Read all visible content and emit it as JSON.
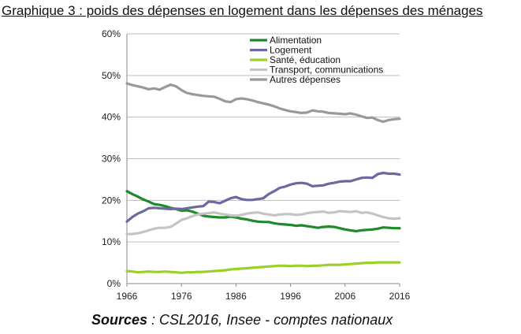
{
  "title": "Graphique 3 : poids des dépenses en logement dans les dépenses des ménages",
  "sources": {
    "label": "Sources",
    "text": " : CSL2016, Insee - comptes nationaux"
  },
  "chart_data": {
    "type": "line",
    "title": "Graphique 3 : poids des dépenses en logement dans les dépenses des ménages",
    "xlabel": "",
    "ylabel": "",
    "xlim": [
      1966,
      2016
    ],
    "ylim": [
      0,
      60
    ],
    "x_ticks": [
      "1966",
      "1976",
      "1986",
      "1996",
      "2006",
      "2016"
    ],
    "y_ticks": [
      "0%",
      "10%",
      "20%",
      "30%",
      "40%",
      "50%",
      "60%"
    ],
    "grid": "horizontal",
    "legend": "top-right",
    "x": [
      1966,
      1967,
      1968,
      1969,
      1970,
      1971,
      1972,
      1973,
      1974,
      1975,
      1976,
      1977,
      1978,
      1979,
      1980,
      1981,
      1982,
      1983,
      1984,
      1985,
      1986,
      1987,
      1988,
      1989,
      1990,
      1991,
      1992,
      1993,
      1994,
      1995,
      1996,
      1997,
      1998,
      1999,
      2000,
      2001,
      2002,
      2003,
      2004,
      2005,
      2006,
      2007,
      2008,
      2009,
      2010,
      2011,
      2012,
      2013,
      2014,
      2015,
      2016
    ],
    "series": [
      {
        "name": "Alimentation",
        "color": "#1e8a2a",
        "values": [
          22.2,
          21.5,
          20.9,
          20.2,
          19.7,
          19.1,
          18.9,
          18.6,
          18.2,
          17.9,
          17.5,
          17.6,
          17.3,
          16.8,
          16.3,
          16.1,
          16.0,
          15.9,
          15.9,
          16.1,
          15.9,
          15.6,
          15.4,
          15.1,
          14.9,
          14.8,
          14.8,
          14.5,
          14.3,
          14.2,
          14.1,
          13.9,
          14.0,
          13.8,
          13.6,
          13.4,
          13.6,
          13.7,
          13.6,
          13.3,
          13.0,
          12.8,
          12.6,
          12.8,
          12.9,
          13.0,
          13.2,
          13.5,
          13.4,
          13.3,
          13.3
        ]
      },
      {
        "name": "Logement",
        "color": "#6b6aa0",
        "values": [
          14.9,
          16.0,
          16.8,
          17.4,
          18.1,
          18.2,
          18.1,
          18.0,
          17.9,
          18.0,
          17.9,
          18.1,
          18.3,
          18.5,
          18.6,
          19.7,
          19.6,
          19.3,
          19.9,
          20.5,
          20.8,
          20.3,
          20.1,
          20.1,
          20.3,
          20.5,
          21.5,
          22.2,
          23.0,
          23.3,
          23.8,
          24.1,
          24.2,
          24.0,
          23.4,
          23.5,
          23.6,
          24.0,
          24.2,
          24.5,
          24.6,
          24.6,
          25.0,
          25.4,
          25.5,
          25.4,
          26.3,
          26.6,
          26.4,
          26.4,
          26.2
        ]
      },
      {
        "name": "Santé, éducation",
        "color": "#9bd02b",
        "values": [
          3.0,
          2.9,
          2.7,
          2.8,
          2.9,
          2.8,
          2.8,
          2.9,
          2.8,
          2.7,
          2.6,
          2.7,
          2.7,
          2.8,
          2.8,
          2.9,
          3.0,
          3.1,
          3.2,
          3.4,
          3.5,
          3.6,
          3.7,
          3.8,
          3.9,
          4.0,
          4.1,
          4.2,
          4.3,
          4.3,
          4.2,
          4.3,
          4.3,
          4.2,
          4.3,
          4.3,
          4.4,
          4.5,
          4.5,
          4.5,
          4.6,
          4.7,
          4.8,
          4.9,
          5.0,
          5.0,
          5.1,
          5.1,
          5.1,
          5.1,
          5.1
        ]
      },
      {
        "name": "Transport, communications",
        "color": "#c4c4c4",
        "values": [
          11.9,
          11.9,
          12.1,
          12.4,
          12.8,
          13.2,
          13.4,
          13.4,
          13.6,
          14.4,
          15.3,
          15.7,
          16.2,
          16.6,
          16.8,
          16.9,
          17.1,
          16.8,
          16.6,
          16.4,
          16.3,
          16.5,
          16.8,
          17.0,
          17.1,
          16.8,
          16.6,
          16.4,
          16.6,
          16.7,
          16.7,
          16.5,
          16.6,
          16.9,
          17.1,
          17.2,
          17.3,
          17.0,
          17.1,
          17.4,
          17.3,
          17.2,
          17.4,
          17.0,
          17.1,
          16.8,
          16.4,
          16.0,
          15.7,
          15.6,
          15.7
        ]
      },
      {
        "name": "Autres dépenses",
        "color": "#999999",
        "values": [
          48.1,
          47.7,
          47.4,
          47.1,
          46.7,
          46.9,
          46.6,
          47.2,
          47.8,
          47.4,
          46.5,
          45.8,
          45.5,
          45.3,
          45.1,
          45.0,
          44.9,
          44.4,
          43.8,
          43.6,
          44.3,
          44.5,
          44.3,
          44.0,
          43.6,
          43.3,
          43.0,
          42.6,
          42.1,
          41.7,
          41.4,
          41.2,
          41.0,
          41.1,
          41.6,
          41.4,
          41.3,
          41.0,
          40.9,
          40.8,
          40.7,
          40.9,
          40.6,
          40.2,
          39.8,
          39.9,
          39.3,
          38.9,
          39.3,
          39.5,
          39.6
        ]
      }
    ]
  }
}
